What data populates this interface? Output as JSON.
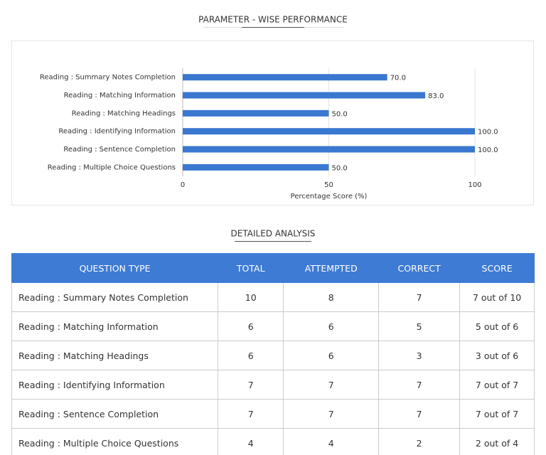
{
  "chart_data": {
    "type": "bar",
    "orientation": "horizontal",
    "title": "PARAMETER - WISE PERFORMANCE",
    "categories": [
      "Reading : Summary Notes Completion",
      "Reading : Matching Information",
      "Reading : Matching Headings",
      "Reading : Identifying Information",
      "Reading : Sentence Completion",
      "Reading : Multiple Choice Questions"
    ],
    "values": [
      70,
      83,
      50,
      100,
      100,
      50
    ],
    "value_labels": [
      "70.0",
      "83.0",
      "50.0",
      "100.0",
      "100.0",
      "50.0"
    ],
    "color": "#3a78d0",
    "xlabel": "Percentage Score (%)",
    "xlim": [
      0,
      100
    ],
    "xticks": [
      0,
      50,
      100
    ],
    "grid": true
  },
  "table": {
    "title": "DETAILED ANALYSIS",
    "columns": [
      "QUESTION TYPE",
      "TOTAL",
      "ATTEMPTED",
      "CORRECT",
      "SCORE"
    ],
    "rows": [
      [
        "Reading : Summary Notes Completion",
        10,
        8,
        7,
        "7 out of 10"
      ],
      [
        "Reading : Matching Information",
        6,
        6,
        5,
        "5 out of 6"
      ],
      [
        "Reading : Matching Headings",
        6,
        6,
        3,
        "3 out of 6"
      ],
      [
        "Reading : Identifying Information",
        7,
        7,
        7,
        "7 out of 7"
      ],
      [
        "Reading : Sentence Completion",
        7,
        7,
        7,
        "7 out of 7"
      ],
      [
        "Reading : Multiple Choice Questions",
        4,
        4,
        2,
        "2 out of 4"
      ]
    ]
  }
}
